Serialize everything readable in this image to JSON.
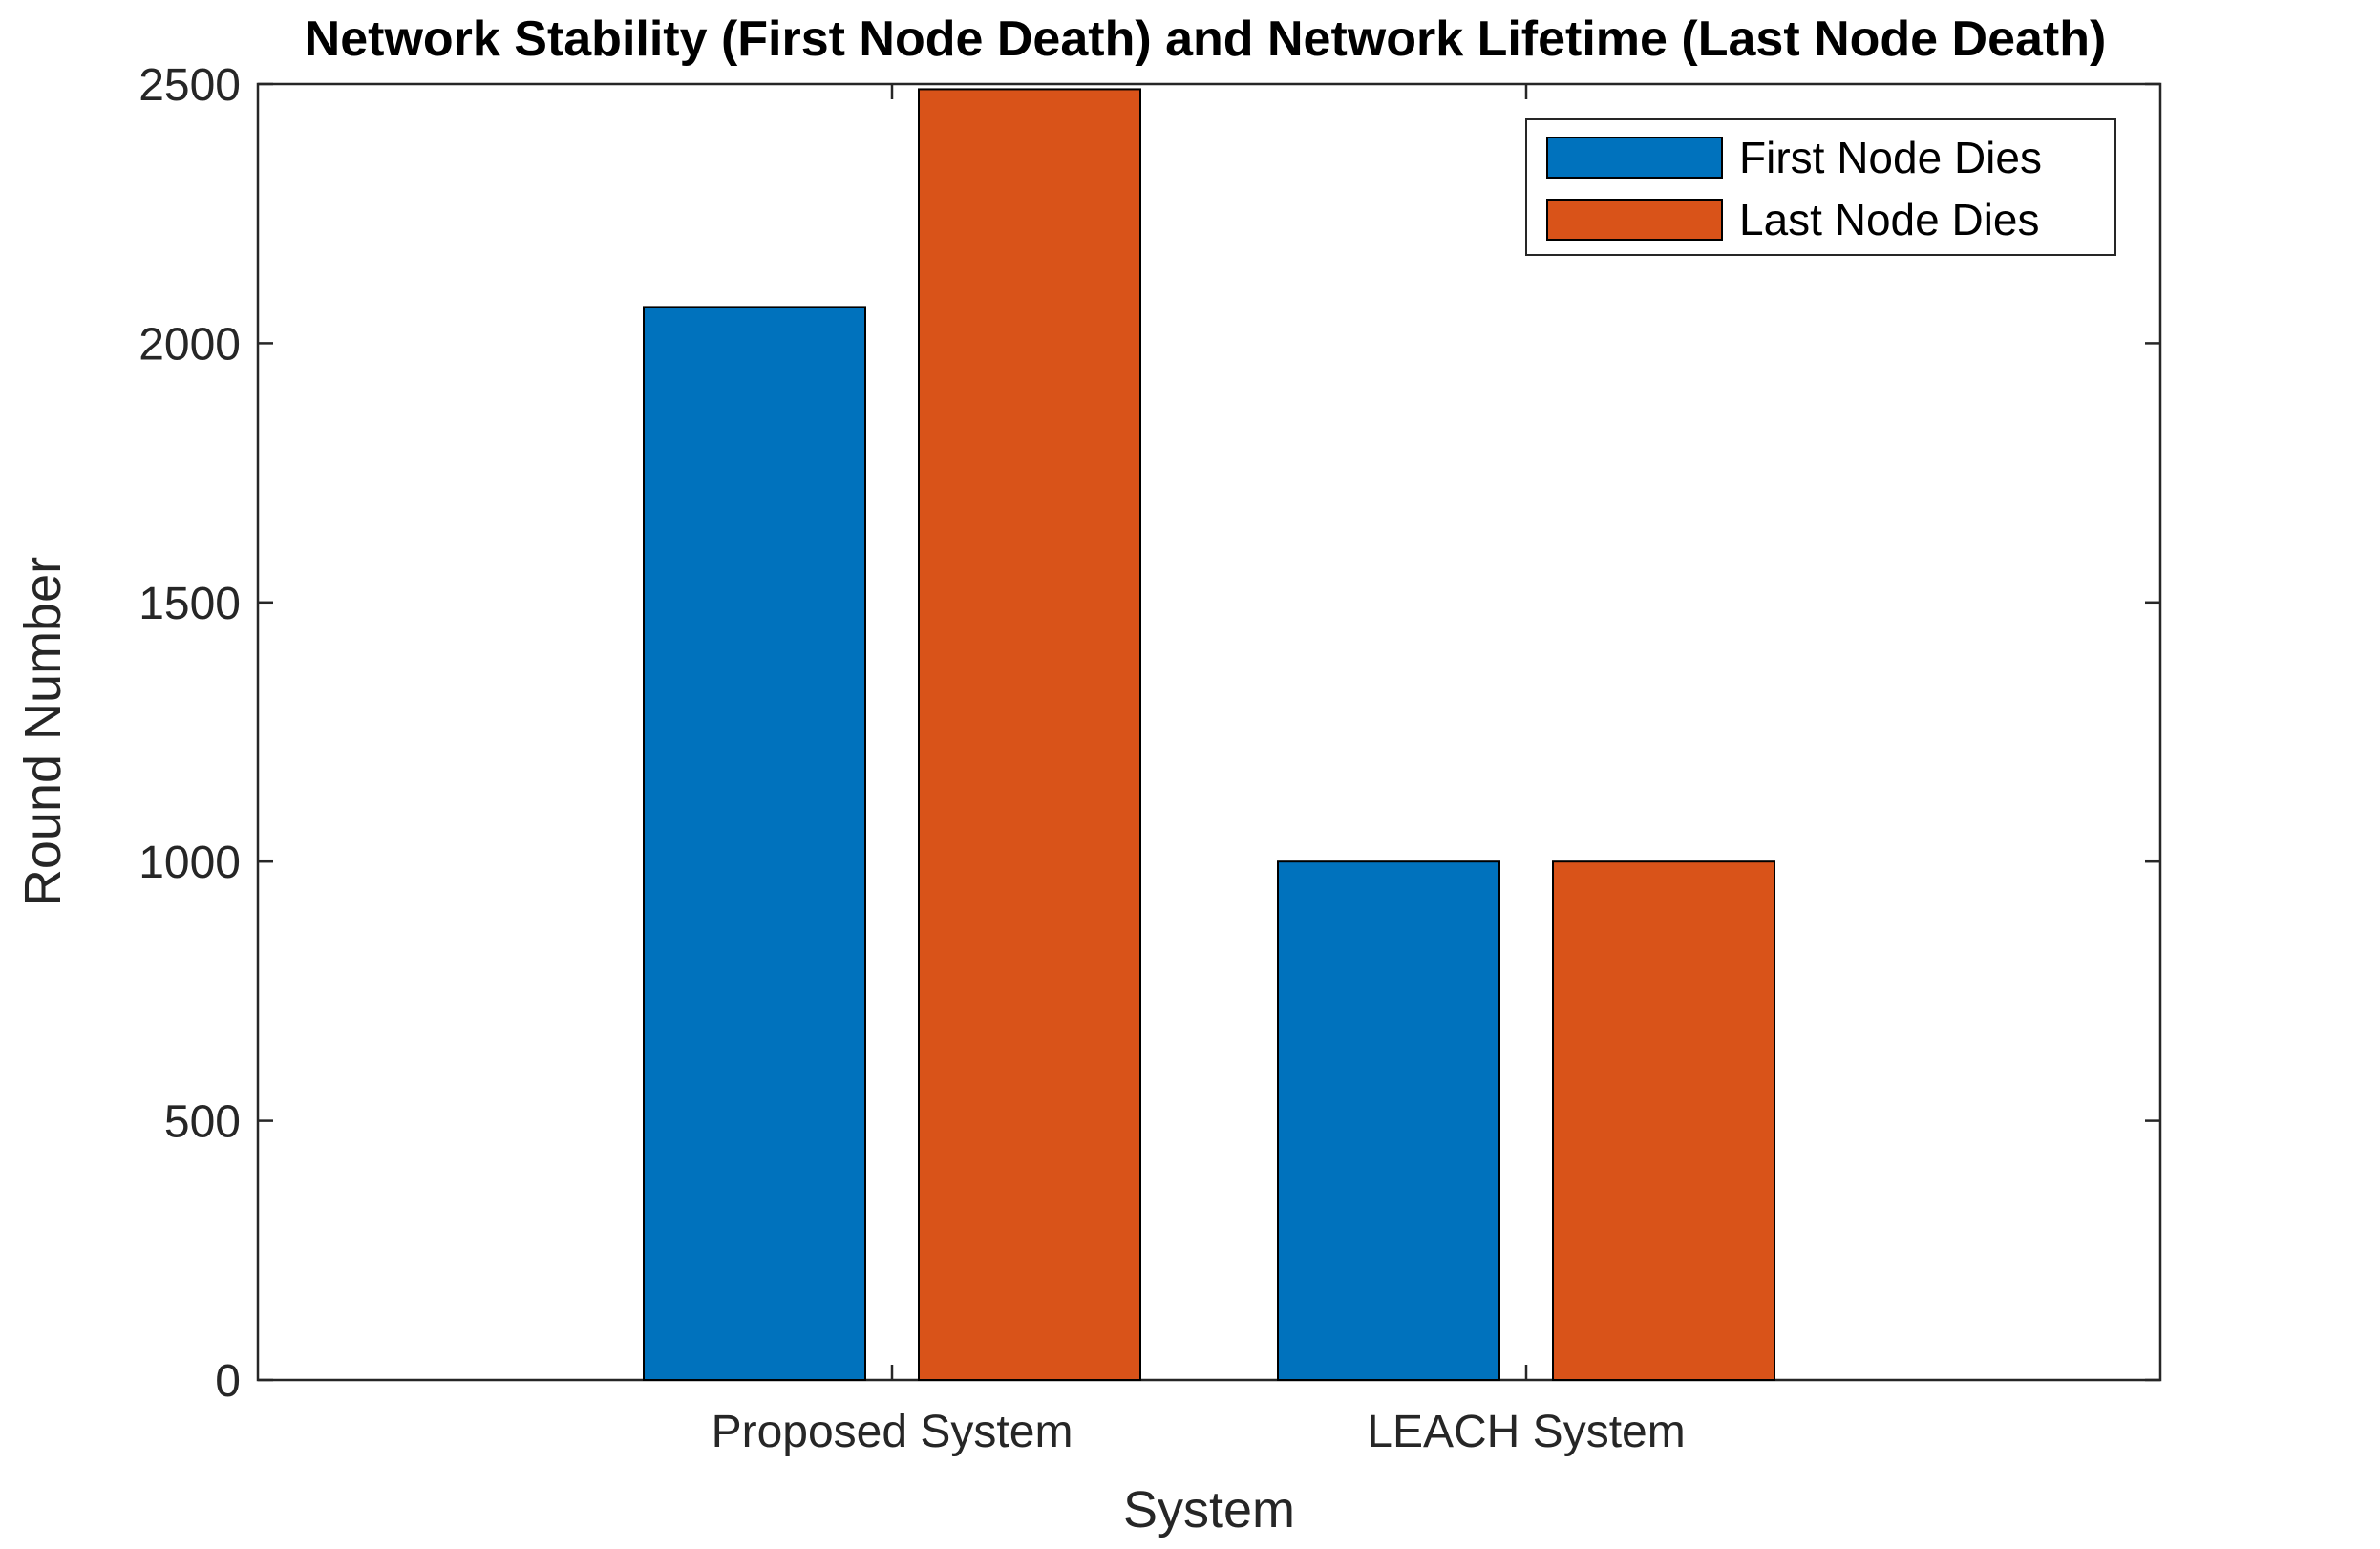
{
  "chart_data": {
    "type": "bar",
    "title": "Network Stability (First Node Death) and Network Lifetime (Last Node Death)",
    "xlabel": "System",
    "ylabel": "Round Number",
    "categories": [
      "Proposed System",
      "LEACH System"
    ],
    "series": [
      {
        "name": "First Node Dies",
        "color": "#0072BD",
        "values": [
          2070,
          1000
        ]
      },
      {
        "name": "Last Node Dies",
        "color": "#D95319",
        "values": [
          2490,
          1000
        ]
      }
    ],
    "ylim": [
      0,
      2500
    ],
    "yticks": [
      0,
      500,
      1000,
      1500,
      2000,
      2500
    ],
    "grid": false,
    "legend_position": "top-right"
  }
}
